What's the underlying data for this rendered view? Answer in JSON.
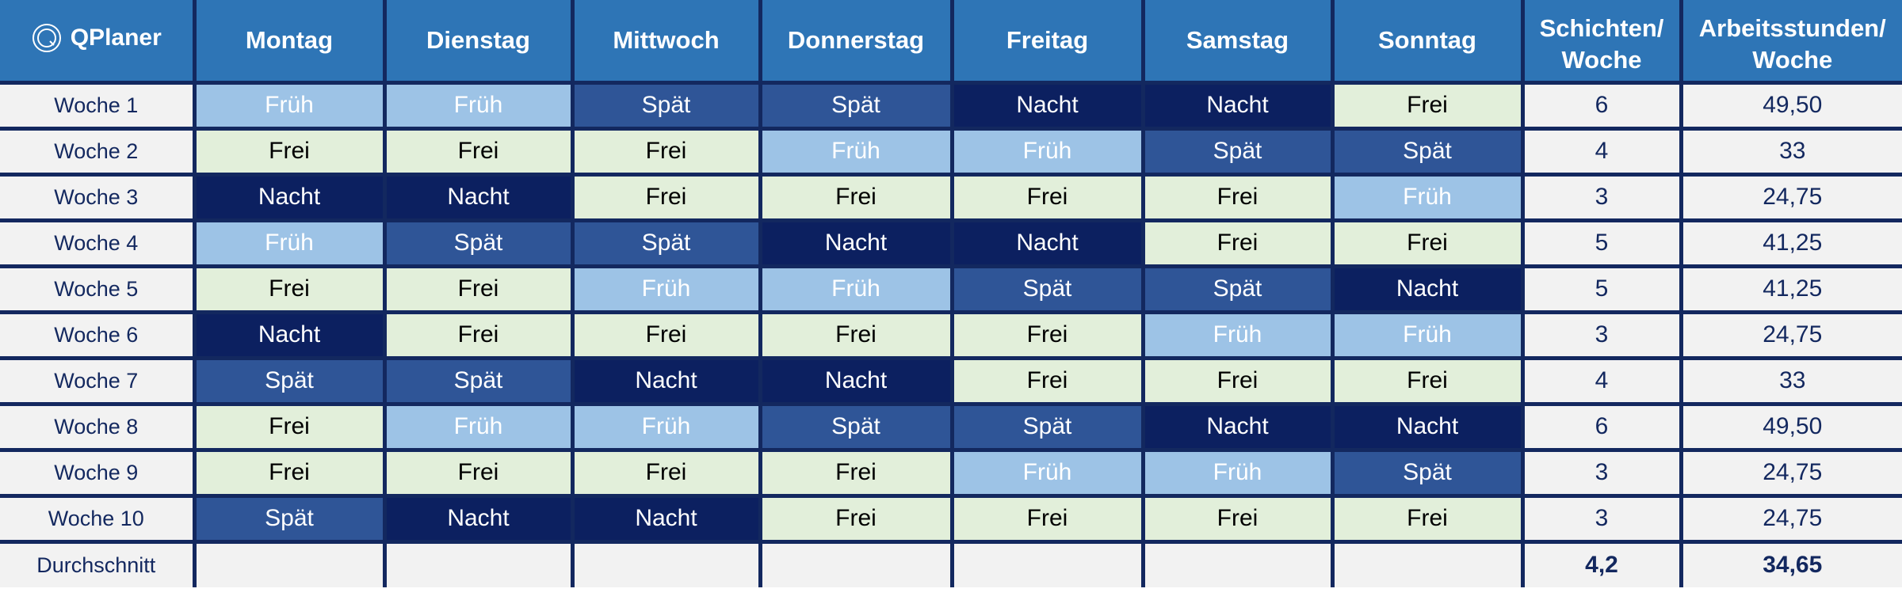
{
  "logo": {
    "text": "QPlaner",
    "icon": "qplaner-logo-icon"
  },
  "days": [
    "Montag",
    "Dienstag",
    "Mittwoch",
    "Donnerstag",
    "Freitag",
    "Samstag",
    "Sonntag"
  ],
  "summary_headers": {
    "shifts_line1": "Schichten/",
    "shifts_line2": "Woche",
    "hours_line1": "Arbeitsstunden/",
    "hours_line2": "Woche"
  },
  "colors": {
    "header": "#2e75b6",
    "frueh": "#9dc3e6",
    "spaet": "#2f5597",
    "nacht": "#0c2060",
    "frei": "#e2efda",
    "border": "#13285f"
  },
  "weeks": [
    {
      "label": "Woche 1",
      "shifts": [
        "Früh",
        "Früh",
        "Spät",
        "Spät",
        "Nacht",
        "Nacht",
        "Frei"
      ],
      "shifts_per_week": "6",
      "hours_per_week": "49,50"
    },
    {
      "label": "Woche 2",
      "shifts": [
        "Frei",
        "Frei",
        "Frei",
        "Früh",
        "Früh",
        "Spät",
        "Spät"
      ],
      "shifts_per_week": "4",
      "hours_per_week": "33"
    },
    {
      "label": "Woche 3",
      "shifts": [
        "Nacht",
        "Nacht",
        "Frei",
        "Frei",
        "Frei",
        "Frei",
        "Früh"
      ],
      "shifts_per_week": "3",
      "hours_per_week": "24,75"
    },
    {
      "label": "Woche 4",
      "shifts": [
        "Früh",
        "Spät",
        "Spät",
        "Nacht",
        "Nacht",
        "Frei",
        "Frei"
      ],
      "shifts_per_week": "5",
      "hours_per_week": "41,25"
    },
    {
      "label": "Woche 5",
      "shifts": [
        "Frei",
        "Frei",
        "Früh",
        "Früh",
        "Spät",
        "Spät",
        "Nacht"
      ],
      "shifts_per_week": "5",
      "hours_per_week": "41,25"
    },
    {
      "label": "Woche 6",
      "shifts": [
        "Nacht",
        "Frei",
        "Frei",
        "Frei",
        "Frei",
        "Früh",
        "Früh"
      ],
      "shifts_per_week": "3",
      "hours_per_week": "24,75"
    },
    {
      "label": "Woche 7",
      "shifts": [
        "Spät",
        "Spät",
        "Nacht",
        "Nacht",
        "Frei",
        "Frei",
        "Frei"
      ],
      "shifts_per_week": "4",
      "hours_per_week": "33"
    },
    {
      "label": "Woche 8",
      "shifts": [
        "Frei",
        "Früh",
        "Früh",
        "Spät",
        "Spät",
        "Nacht",
        "Nacht"
      ],
      "shifts_per_week": "6",
      "hours_per_week": "49,50"
    },
    {
      "label": "Woche 9",
      "shifts": [
        "Frei",
        "Frei",
        "Frei",
        "Frei",
        "Früh",
        "Früh",
        "Spät"
      ],
      "shifts_per_week": "3",
      "hours_per_week": "24,75"
    },
    {
      "label": "Woche 10",
      "shifts": [
        "Spät",
        "Nacht",
        "Nacht",
        "Frei",
        "Frei",
        "Frei",
        "Frei"
      ],
      "shifts_per_week": "3",
      "hours_per_week": "24,75"
    }
  ],
  "average": {
    "label": "Durchschnitt",
    "shifts_per_week": "4,2",
    "hours_per_week": "34,65"
  }
}
